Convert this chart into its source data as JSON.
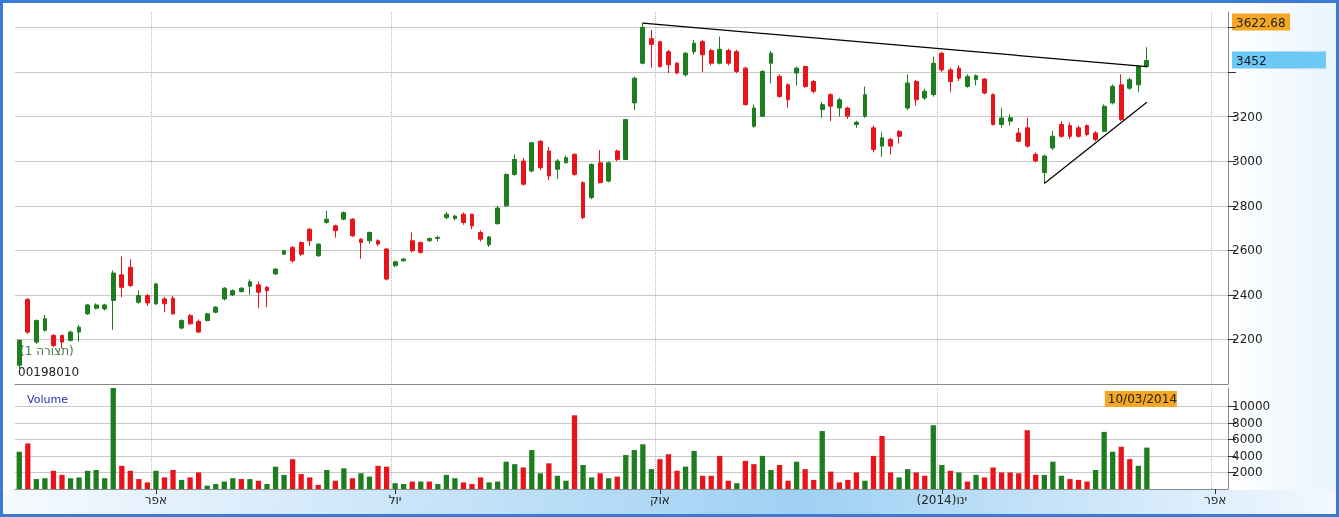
{
  "chart_data": [
    {
      "type": "candlestick",
      "categories": [
        null,
        null,
        null,
        null,
        null,
        null,
        null,
        null,
        null,
        null,
        null,
        null,
        null,
        null,
        null,
        null,
        null,
        null,
        null,
        null,
        null,
        null,
        null,
        null,
        null,
        null,
        null,
        null,
        null,
        null,
        null,
        null,
        null,
        null,
        null,
        null,
        null,
        null,
        null,
        null,
        null,
        null,
        null,
        null,
        null,
        null,
        null,
        null,
        null,
        null,
        null,
        null,
        null,
        null,
        null,
        null,
        null,
        null,
        null,
        null,
        null,
        null,
        null,
        null,
        null,
        null,
        null,
        null,
        null,
        null,
        null,
        null,
        null,
        null,
        null,
        null,
        null,
        null,
        null,
        null,
        null,
        null,
        null,
        null,
        null,
        null,
        null,
        null,
        null,
        null,
        null,
        null,
        null,
        null,
        null,
        null,
        null,
        null,
        null,
        null,
        null,
        null,
        null,
        null,
        null,
        null,
        null,
        null,
        null,
        null,
        null,
        null,
        null,
        null,
        null,
        null,
        null,
        null,
        null,
        null,
        null,
        null,
        null,
        null,
        null,
        null,
        null,
        null,
        null,
        null,
        null,
        null,
        null,
        null,
        null,
        null,
        null,
        null,
        null,
        null,
        null,
        null
      ],
      "ohlc": [
        [
          2084,
          2200,
          2060,
          2196
        ],
        [
          2380,
          2385,
          2225,
          2233
        ],
        [
          2188,
          2290,
          2180,
          2285
        ],
        [
          2241,
          2310,
          2235,
          2293
        ],
        [
          2218,
          2225,
          2165,
          2173
        ],
        [
          2218,
          2222,
          2160,
          2188
        ],
        [
          2196,
          2240,
          2190,
          2233
        ],
        [
          2233,
          2265,
          2190,
          2255
        ],
        [
          2315,
          2360,
          2310,
          2355
        ],
        [
          2340,
          2362,
          2335,
          2355
        ],
        [
          2337,
          2360,
          2330,
          2355
        ],
        [
          2375,
          2510,
          2243,
          2498
        ],
        [
          2490,
          2573,
          2390,
          2434
        ],
        [
          2524,
          2560,
          2435,
          2442
        ],
        [
          2367,
          2420,
          2360,
          2397
        ],
        [
          2397,
          2405,
          2350,
          2364
        ],
        [
          2360,
          2455,
          2355,
          2449
        ],
        [
          2382,
          2390,
          2322,
          2360
        ],
        [
          2385,
          2395,
          2310,
          2315
        ],
        [
          2251,
          2290,
          2245,
          2285
        ],
        [
          2307,
          2315,
          2265,
          2270
        ],
        [
          2281,
          2290,
          2229,
          2233
        ],
        [
          2285,
          2320,
          2280,
          2315
        ],
        [
          2322,
          2350,
          2318,
          2345
        ],
        [
          2382,
          2435,
          2375,
          2430
        ],
        [
          2400,
          2425,
          2395,
          2419
        ],
        [
          2415,
          2435,
          2410,
          2430
        ],
        [
          2439,
          2470,
          2400,
          2459
        ],
        [
          2445,
          2460,
          2340,
          2412
        ],
        [
          2434,
          2440,
          2345,
          2419
        ],
        [
          2494,
          2520,
          2490,
          2516
        ],
        [
          2583,
          2603,
          2578,
          2598
        ],
        [
          2613,
          2620,
          2545,
          2553
        ],
        [
          2635,
          2640,
          2575,
          2583
        ],
        [
          2695,
          2700,
          2620,
          2643
        ],
        [
          2576,
          2632,
          2570,
          2628
        ],
        [
          2725,
          2777,
          2720,
          2740
        ],
        [
          2710,
          2715,
          2657,
          2688
        ],
        [
          2740,
          2775,
          2735,
          2769
        ],
        [
          2740,
          2745,
          2660,
          2665
        ],
        [
          2650,
          2655,
          2562,
          2635
        ],
        [
          2643,
          2685,
          2630,
          2680
        ],
        [
          2643,
          2650,
          2620,
          2628
        ],
        [
          2606,
          2610,
          2465,
          2471
        ],
        [
          2531,
          2553,
          2525,
          2549
        ],
        [
          2553,
          2565,
          2550,
          2561
        ],
        [
          2643,
          2680,
          2590,
          2598
        ],
        [
          2635,
          2640,
          2585,
          2591
        ],
        [
          2643,
          2658,
          2638,
          2653
        ],
        [
          2654,
          2665,
          2640,
          2658
        ],
        [
          2747,
          2772,
          2740,
          2762
        ],
        [
          2743,
          2760,
          2735,
          2754
        ],
        [
          2762,
          2770,
          2715,
          2725
        ],
        [
          2762,
          2765,
          2695,
          2710
        ],
        [
          2680,
          2690,
          2640,
          2650
        ],
        [
          2625,
          2665,
          2615,
          2660
        ],
        [
          2720,
          2800,
          2715,
          2790
        ],
        [
          2800,
          2945,
          2795,
          2941
        ],
        [
          2941,
          3030,
          2935,
          3008
        ],
        [
          3001,
          3015,
          2890,
          2897
        ],
        [
          2956,
          3088,
          2950,
          3083
        ],
        [
          3090,
          3095,
          2960,
          2971
        ],
        [
          3046,
          3065,
          2915,
          2934
        ],
        [
          2964,
          3010,
          2920,
          3001
        ],
        [
          2993,
          3025,
          2990,
          3016
        ],
        [
          3031,
          3035,
          2935,
          2941
        ],
        [
          2904,
          2910,
          2740,
          2747
        ],
        [
          2837,
          2990,
          2830,
          2986
        ],
        [
          2993,
          3050,
          2900,
          2904
        ],
        [
          2911,
          3000,
          2905,
          2993
        ],
        [
          3046,
          3052,
          3000,
          3008
        ],
        [
          3008,
          3190,
          3005,
          3187
        ],
        [
          3262,
          3380,
          3230,
          3373
        ],
        [
          3440,
          3622.68,
          3435,
          3601
        ],
        [
          3550,
          3590,
          3420,
          3525
        ],
        [
          3537,
          3540,
          3420,
          3425
        ],
        [
          3492,
          3500,
          3395,
          3433
        ],
        [
          3440,
          3445,
          3390,
          3396
        ],
        [
          3388,
          3490,
          3380,
          3485
        ],
        [
          3492,
          3545,
          3480,
          3530
        ],
        [
          3537,
          3545,
          3400,
          3478
        ],
        [
          3497,
          3505,
          3430,
          3440
        ],
        [
          3440,
          3560,
          3435,
          3503
        ],
        [
          3497,
          3505,
          3430,
          3440
        ],
        [
          3492,
          3500,
          3395,
          3403
        ],
        [
          3418,
          3425,
          3250,
          3254
        ],
        [
          3157,
          3255,
          3150,
          3239
        ],
        [
          3202,
          3410,
          3198,
          3403
        ],
        [
          3440,
          3495,
          3350,
          3485
        ],
        [
          3381,
          3390,
          3285,
          3291
        ],
        [
          3343,
          3350,
          3240,
          3276
        ],
        [
          3396,
          3425,
          3340,
          3418
        ],
        [
          3425,
          3430,
          3330,
          3336
        ],
        [
          3358,
          3365,
          3305,
          3314
        ],
        [
          3232,
          3265,
          3195,
          3254
        ],
        [
          3299,
          3305,
          3180,
          3247
        ],
        [
          3239,
          3285,
          3200,
          3276
        ],
        [
          3239,
          3245,
          3190,
          3202
        ],
        [
          3165,
          3182,
          3150,
          3175
        ],
        [
          3202,
          3335,
          3195,
          3299
        ],
        [
          3150,
          3160,
          3040,
          3053
        ],
        [
          3068,
          3130,
          3020,
          3105
        ],
        [
          3098,
          3105,
          3030,
          3068
        ],
        [
          3134,
          3140,
          3080,
          3112
        ],
        [
          3239,
          3390,
          3230,
          3351
        ],
        [
          3358,
          3365,
          3250,
          3276
        ],
        [
          3284,
          3325,
          3275,
          3314
        ],
        [
          3299,
          3470,
          3290,
          3440
        ],
        [
          3485,
          3492,
          3400,
          3410
        ],
        [
          3410,
          3420,
          3310,
          3358
        ],
        [
          3418,
          3430,
          3360,
          3373
        ],
        [
          3336,
          3390,
          3330,
          3381
        ],
        [
          3366,
          3390,
          3340,
          3384
        ],
        [
          3369,
          3374,
          3300,
          3306
        ],
        [
          3299,
          3305,
          3160,
          3165
        ],
        [
          3165,
          3240,
          3150,
          3194
        ],
        [
          3180,
          3210,
          3160,
          3195
        ],
        [
          3127,
          3150,
          3085,
          3090
        ],
        [
          3150,
          3195,
          3060,
          3068
        ],
        [
          3031,
          3040,
          2995,
          3001
        ],
        [
          2949,
          3030,
          2900,
          3023
        ],
        [
          3060,
          3135,
          3050,
          3112
        ],
        [
          3165,
          3180,
          3105,
          3112
        ],
        [
          3160,
          3175,
          3100,
          3112
        ],
        [
          3150,
          3160,
          3105,
          3112
        ],
        [
          3160,
          3165,
          3112,
          3120
        ],
        [
          3127,
          3135,
          3090,
          3098
        ],
        [
          3135,
          3255,
          3130,
          3247
        ],
        [
          3262,
          3345,
          3255,
          3336
        ],
        [
          3343,
          3390,
          3180,
          3187
        ],
        [
          3328,
          3375,
          3320,
          3366
        ],
        [
          3343,
          3430,
          3310,
          3425
        ],
        [
          3425,
          3512,
          3420,
          3452
        ],
        null,
        null,
        null,
        null,
        null,
        null,
        null,
        null,
        null
      ],
      "colors": [
        "#1e7d1e",
        "#e8141b",
        "#1e7d1e",
        "#1e7d1e",
        "#e8141b",
        "#e8141b",
        "#1e7d1e",
        "#1e7d1e",
        "#1e7d1e",
        "#1e7d1e",
        "#1e7d1e",
        "#1e7d1e",
        "#e8141b",
        "#e8141b",
        "#1e7d1e",
        "#e8141b",
        "#1e7d1e",
        "#e8141b",
        "#e8141b",
        "#1e7d1e",
        "#e8141b",
        "#e8141b",
        "#1e7d1e",
        "#1e7d1e",
        "#1e7d1e",
        "#1e7d1e",
        "#1e7d1e",
        "#1e7d1e",
        "#e8141b",
        "#e8141b",
        "#1e7d1e",
        "#1e7d1e",
        "#e8141b",
        "#e8141b",
        "#e8141b",
        "#1e7d1e",
        "#1e7d1e",
        "#e8141b",
        "#1e7d1e",
        "#e8141b",
        "#e8141b",
        "#1e7d1e",
        "#e8141b",
        "#e8141b",
        "#1e7d1e",
        "#1e7d1e",
        "#e8141b",
        "#e8141b",
        "#1e7d1e",
        "#1e7d1e",
        "#1e7d1e",
        "#1e7d1e",
        "#e8141b",
        "#e8141b",
        "#e8141b",
        "#1e7d1e",
        "#1e7d1e",
        "#1e7d1e",
        "#1e7d1e",
        "#e8141b",
        "#1e7d1e",
        "#e8141b",
        "#e8141b",
        "#1e7d1e",
        "#1e7d1e",
        "#e8141b",
        "#e8141b",
        "#1e7d1e",
        "#e8141b",
        "#1e7d1e",
        "#e8141b",
        "#1e7d1e",
        "#1e7d1e",
        "#1e7d1e",
        "#e8141b",
        "#e8141b",
        "#e8141b",
        "#e8141b",
        "#1e7d1e",
        "#1e7d1e",
        "#e8141b",
        "#e8141b",
        "#1e7d1e",
        "#e8141b",
        "#e8141b",
        "#e8141b",
        "#1e7d1e",
        "#1e7d1e",
        "#1e7d1e",
        "#e8141b",
        "#e8141b",
        "#1e7d1e",
        "#e8141b",
        "#e8141b",
        "#1e7d1e",
        "#e8141b",
        "#1e7d1e",
        "#e8141b",
        "#1e7d1e",
        "#1e7d1e",
        "#e8141b",
        "#1e7d1e",
        "#e8141b",
        "#e8141b",
        "#1e7d1e",
        "#e8141b",
        "#1e7d1e",
        "#1e7d1e",
        "#e8141b",
        "#e8141b",
        "#e8141b",
        "#1e7d1e",
        "#1e7d1e",
        "#e8141b",
        "#e8141b",
        "#1e7d1e",
        "#1e7d1e",
        "#e8141b",
        "#e8141b",
        "#e8141b",
        "#1e7d1e",
        "#1e7d1e",
        "#e8141b",
        "#e8141b",
        "#e8141b",
        "#e8141b",
        "#e8141b",
        "#1e7d1e",
        "#1e7d1e",
        "#e8141b",
        "#1e7d1e",
        "#1e7d1e",
        "#1e7d1e",
        null,
        null,
        null,
        null,
        null,
        null,
        null,
        null,
        null
      ],
      "series": [
        {
          "type": "line",
          "color": "#000000",
          "values": [
            null,
            null,
            null,
            null,
            null,
            null,
            null,
            null,
            null,
            null,
            null,
            null,
            null,
            null,
            null,
            null,
            null,
            null,
            null,
            null,
            null,
            null,
            null,
            null,
            null,
            null,
            null,
            null,
            null,
            null,
            null,
            null,
            null,
            null,
            null,
            null,
            null,
            null,
            null,
            null,
            null,
            null,
            null,
            null,
            null,
            null,
            null,
            null,
            null,
            null,
            null,
            null,
            null,
            null,
            null,
            null,
            null,
            null,
            null,
            null,
            null,
            null,
            null,
            null,
            null,
            null,
            null,
            null,
            null,
            null,
            null,
            null,
            null,
            3620,
            null,
            null,
            null,
            null,
            null,
            null,
            null,
            null,
            null,
            null,
            null,
            null,
            null,
            null,
            null,
            null,
            null,
            null,
            null,
            null,
            null,
            null,
            null,
            null,
            null,
            null,
            null,
            null,
            null,
            null,
            null,
            null,
            null,
            null,
            null,
            null,
            null,
            null,
            null,
            null,
            null,
            null,
            null,
            null,
            null,
            null,
            null,
            null,
            null,
            null,
            null,
            null,
            null,
            null,
            null,
            null,
            null,
            null,
            3425,
            null,
            null,
            null,
            null,
            null,
            null,
            null,
            null,
            null
          ]
        },
        {
          "type": "line",
          "color": "#000000",
          "values": [
            null,
            null,
            null,
            null,
            null,
            null,
            null,
            null,
            null,
            null,
            null,
            null,
            null,
            null,
            null,
            null,
            null,
            null,
            null,
            null,
            null,
            null,
            null,
            null,
            null,
            null,
            null,
            null,
            null,
            null,
            null,
            null,
            null,
            null,
            null,
            null,
            null,
            null,
            null,
            null,
            null,
            null,
            null,
            null,
            null,
            null,
            null,
            null,
            null,
            null,
            null,
            null,
            null,
            null,
            null,
            null,
            null,
            null,
            null,
            null,
            null,
            null,
            null,
            null,
            null,
            null,
            null,
            null,
            null,
            null,
            null,
            null,
            null,
            null,
            null,
            null,
            null,
            null,
            null,
            null,
            null,
            null,
            null,
            null,
            null,
            null,
            null,
            null,
            null,
            null,
            null,
            null,
            null,
            null,
            null,
            null,
            null,
            null,
            null,
            null,
            null,
            null,
            null,
            null,
            null,
            null,
            null,
            null,
            null,
            null,
            null,
            null,
            null,
            null,
            null,
            null,
            null,
            null,
            null,
            null,
            2900,
            null,
            null,
            null,
            null,
            null,
            null,
            null,
            null,
            null,
            null,
            null,
            3265,
            null,
            null,
            null,
            null,
            null,
            null,
            null,
            null,
            null
          ]
        }
      ],
      "ylim": [
        2000,
        3670
      ],
      "yticks": [
        2200,
        2400,
        2600,
        2800,
        3000,
        3200,
        {
          "value": 3400,
          "label": null
        },
        {
          "value": 3600,
          "label": null
        }
      ],
      "grid": true,
      "tick_labels": "y",
      "annotations": [
        "3622.68",
        "3452",
        "(תצורה 1)",
        "00198010"
      ]
    },
    {
      "type": "bar",
      "title": "Volume",
      "categories": [
        null,
        null,
        null,
        null,
        null,
        null,
        null,
        null,
        null,
        null,
        null,
        null,
        null,
        null,
        null,
        null,
        "אפר",
        null,
        null,
        null,
        null,
        null,
        null,
        null,
        null,
        null,
        null,
        null,
        null,
        null,
        null,
        null,
        null,
        null,
        null,
        null,
        null,
        null,
        null,
        null,
        null,
        null,
        null,
        null,
        "יול",
        null,
        null,
        null,
        null,
        null,
        null,
        null,
        null,
        null,
        null,
        null,
        null,
        null,
        null,
        null,
        null,
        null,
        null,
        null,
        null,
        null,
        null,
        null,
        null,
        null,
        null,
        null,
        null,
        null,
        null,
        "אוק",
        null,
        null,
        null,
        null,
        null,
        null,
        null,
        null,
        null,
        null,
        null,
        null,
        null,
        null,
        null,
        null,
        null,
        null,
        null,
        null,
        null,
        null,
        null,
        null,
        null,
        null,
        null,
        null,
        null,
        null,
        null,
        null,
        "ינו(2014)",
        null,
        null,
        null,
        null,
        null,
        null,
        null,
        null,
        null,
        null,
        null,
        null,
        null,
        null,
        null,
        null,
        null,
        null,
        null,
        null,
        null,
        null,
        null,
        null,
        null,
        null,
        null,
        null,
        null,
        null,
        null,
        "אפר",
        null
      ],
      "values": [
        4500,
        5500,
        1200,
        1300,
        2200,
        1700,
        1300,
        1400,
        2200,
        2300,
        1300,
        12200,
        2800,
        2200,
        1200,
        800,
        2200,
        1400,
        2300,
        1100,
        1400,
        2000,
        400,
        600,
        900,
        1300,
        1200,
        1200,
        1000,
        600,
        2700,
        1700,
        3600,
        1800,
        1400,
        500,
        2300,
        1000,
        2500,
        1300,
        1900,
        1500,
        2800,
        2700,
        700,
        600,
        900,
        900,
        900,
        600,
        1700,
        1300,
        800,
        600,
        1400,
        800,
        900,
        3300,
        3000,
        2600,
        4700,
        1900,
        3100,
        1600,
        1000,
        8900,
        2900,
        1400,
        1900,
        1300,
        1500,
        4100,
        4700,
        5400,
        2400,
        3600,
        4200,
        2200,
        2700,
        4600,
        1600,
        1600,
        4000,
        1000,
        700,
        3400,
        3000,
        4000,
        2300,
        2900,
        1000,
        3300,
        2400,
        1100,
        7000,
        2100,
        800,
        1100,
        2000,
        1000,
        4000,
        6400,
        2000,
        1400,
        2400,
        2000,
        1600,
        7700,
        2900,
        2200,
        2000,
        900,
        1700,
        1400,
        2600,
        2000,
        2000,
        1900,
        7100,
        1700,
        1700,
        3300,
        1600,
        1200,
        1100,
        900,
        2300,
        6900,
        4500,
        5100,
        3600,
        2800,
        5000,
        null,
        null,
        null,
        null,
        null,
        null,
        null,
        null,
        null
      ],
      "colors": [
        "#1e7d1e",
        "#e8141b",
        "#1e7d1e",
        "#1e7d1e",
        "#e8141b",
        "#e8141b",
        "#1e7d1e",
        "#1e7d1e",
        "#1e7d1e",
        "#1e7d1e",
        "#1e7d1e",
        "#1e7d1e",
        "#e8141b",
        "#e8141b",
        "#e8141b",
        "#e8141b",
        "#1e7d1e",
        "#e8141b",
        "#e8141b",
        "#1e7d1e",
        "#e8141b",
        "#e8141b",
        "#1e7d1e",
        "#1e7d1e",
        "#1e7d1e",
        "#1e7d1e",
        "#e8141b",
        "#1e7d1e",
        "#e8141b",
        "#1e7d1e",
        "#1e7d1e",
        "#1e7d1e",
        "#e8141b",
        "#e8141b",
        "#e8141b",
        "#e8141b",
        "#1e7d1e",
        "#e8141b",
        "#1e7d1e",
        "#e8141b",
        "#1e7d1e",
        "#1e7d1e",
        "#e8141b",
        "#e8141b",
        "#1e7d1e",
        "#1e7d1e",
        "#e8141b",
        "#1e7d1e",
        "#e8141b",
        "#1e7d1e",
        "#1e7d1e",
        "#1e7d1e",
        "#e8141b",
        "#e8141b",
        "#e8141b",
        "#1e7d1e",
        "#1e7d1e",
        "#1e7d1e",
        "#1e7d1e",
        "#e8141b",
        "#1e7d1e",
        "#1e7d1e",
        "#e8141b",
        "#1e7d1e",
        "#1e7d1e",
        "#e8141b",
        "#1e7d1e",
        "#1e7d1e",
        "#e8141b",
        "#1e7d1e",
        "#e8141b",
        "#1e7d1e",
        "#1e7d1e",
        "#1e7d1e",
        "#1e7d1e",
        "#e8141b",
        "#e8141b",
        "#e8141b",
        "#1e7d1e",
        "#1e7d1e",
        "#e8141b",
        "#e8141b",
        "#e8141b",
        "#e8141b",
        "#1e7d1e",
        "#e8141b",
        "#e8141b",
        "#1e7d1e",
        "#1e7d1e",
        "#e8141b",
        "#e8141b",
        "#1e7d1e",
        "#e8141b",
        "#e8141b",
        "#1e7d1e",
        "#e8141b",
        "#e8141b",
        "#e8141b",
        "#e8141b",
        "#1e7d1e",
        "#e8141b",
        "#e8141b",
        "#e8141b",
        "#1e7d1e",
        "#1e7d1e",
        "#e8141b",
        "#e8141b",
        "#1e7d1e",
        "#1e7d1e",
        "#e8141b",
        "#1e7d1e",
        "#e8141b",
        "#1e7d1e",
        "#e8141b",
        "#e8141b",
        "#e8141b",
        "#e8141b",
        "#e8141b",
        "#e8141b",
        "#e8141b",
        "#1e7d1e",
        "#1e7d1e",
        "#1e7d1e",
        "#e8141b",
        "#e8141b",
        "#e8141b",
        "#1e7d1e",
        "#1e7d1e",
        "#1e7d1e",
        "#e8141b",
        "#e8141b",
        "#1e7d1e",
        "#1e7d1e",
        null,
        null,
        null,
        null,
        null,
        null,
        null,
        null,
        null
      ],
      "ylim": [
        0,
        12200
      ],
      "yticks": [
        2000,
        4000,
        6000,
        8000,
        10000
      ],
      "grid": true,
      "annotations": [
        "10/03/2014"
      ]
    }
  ]
}
